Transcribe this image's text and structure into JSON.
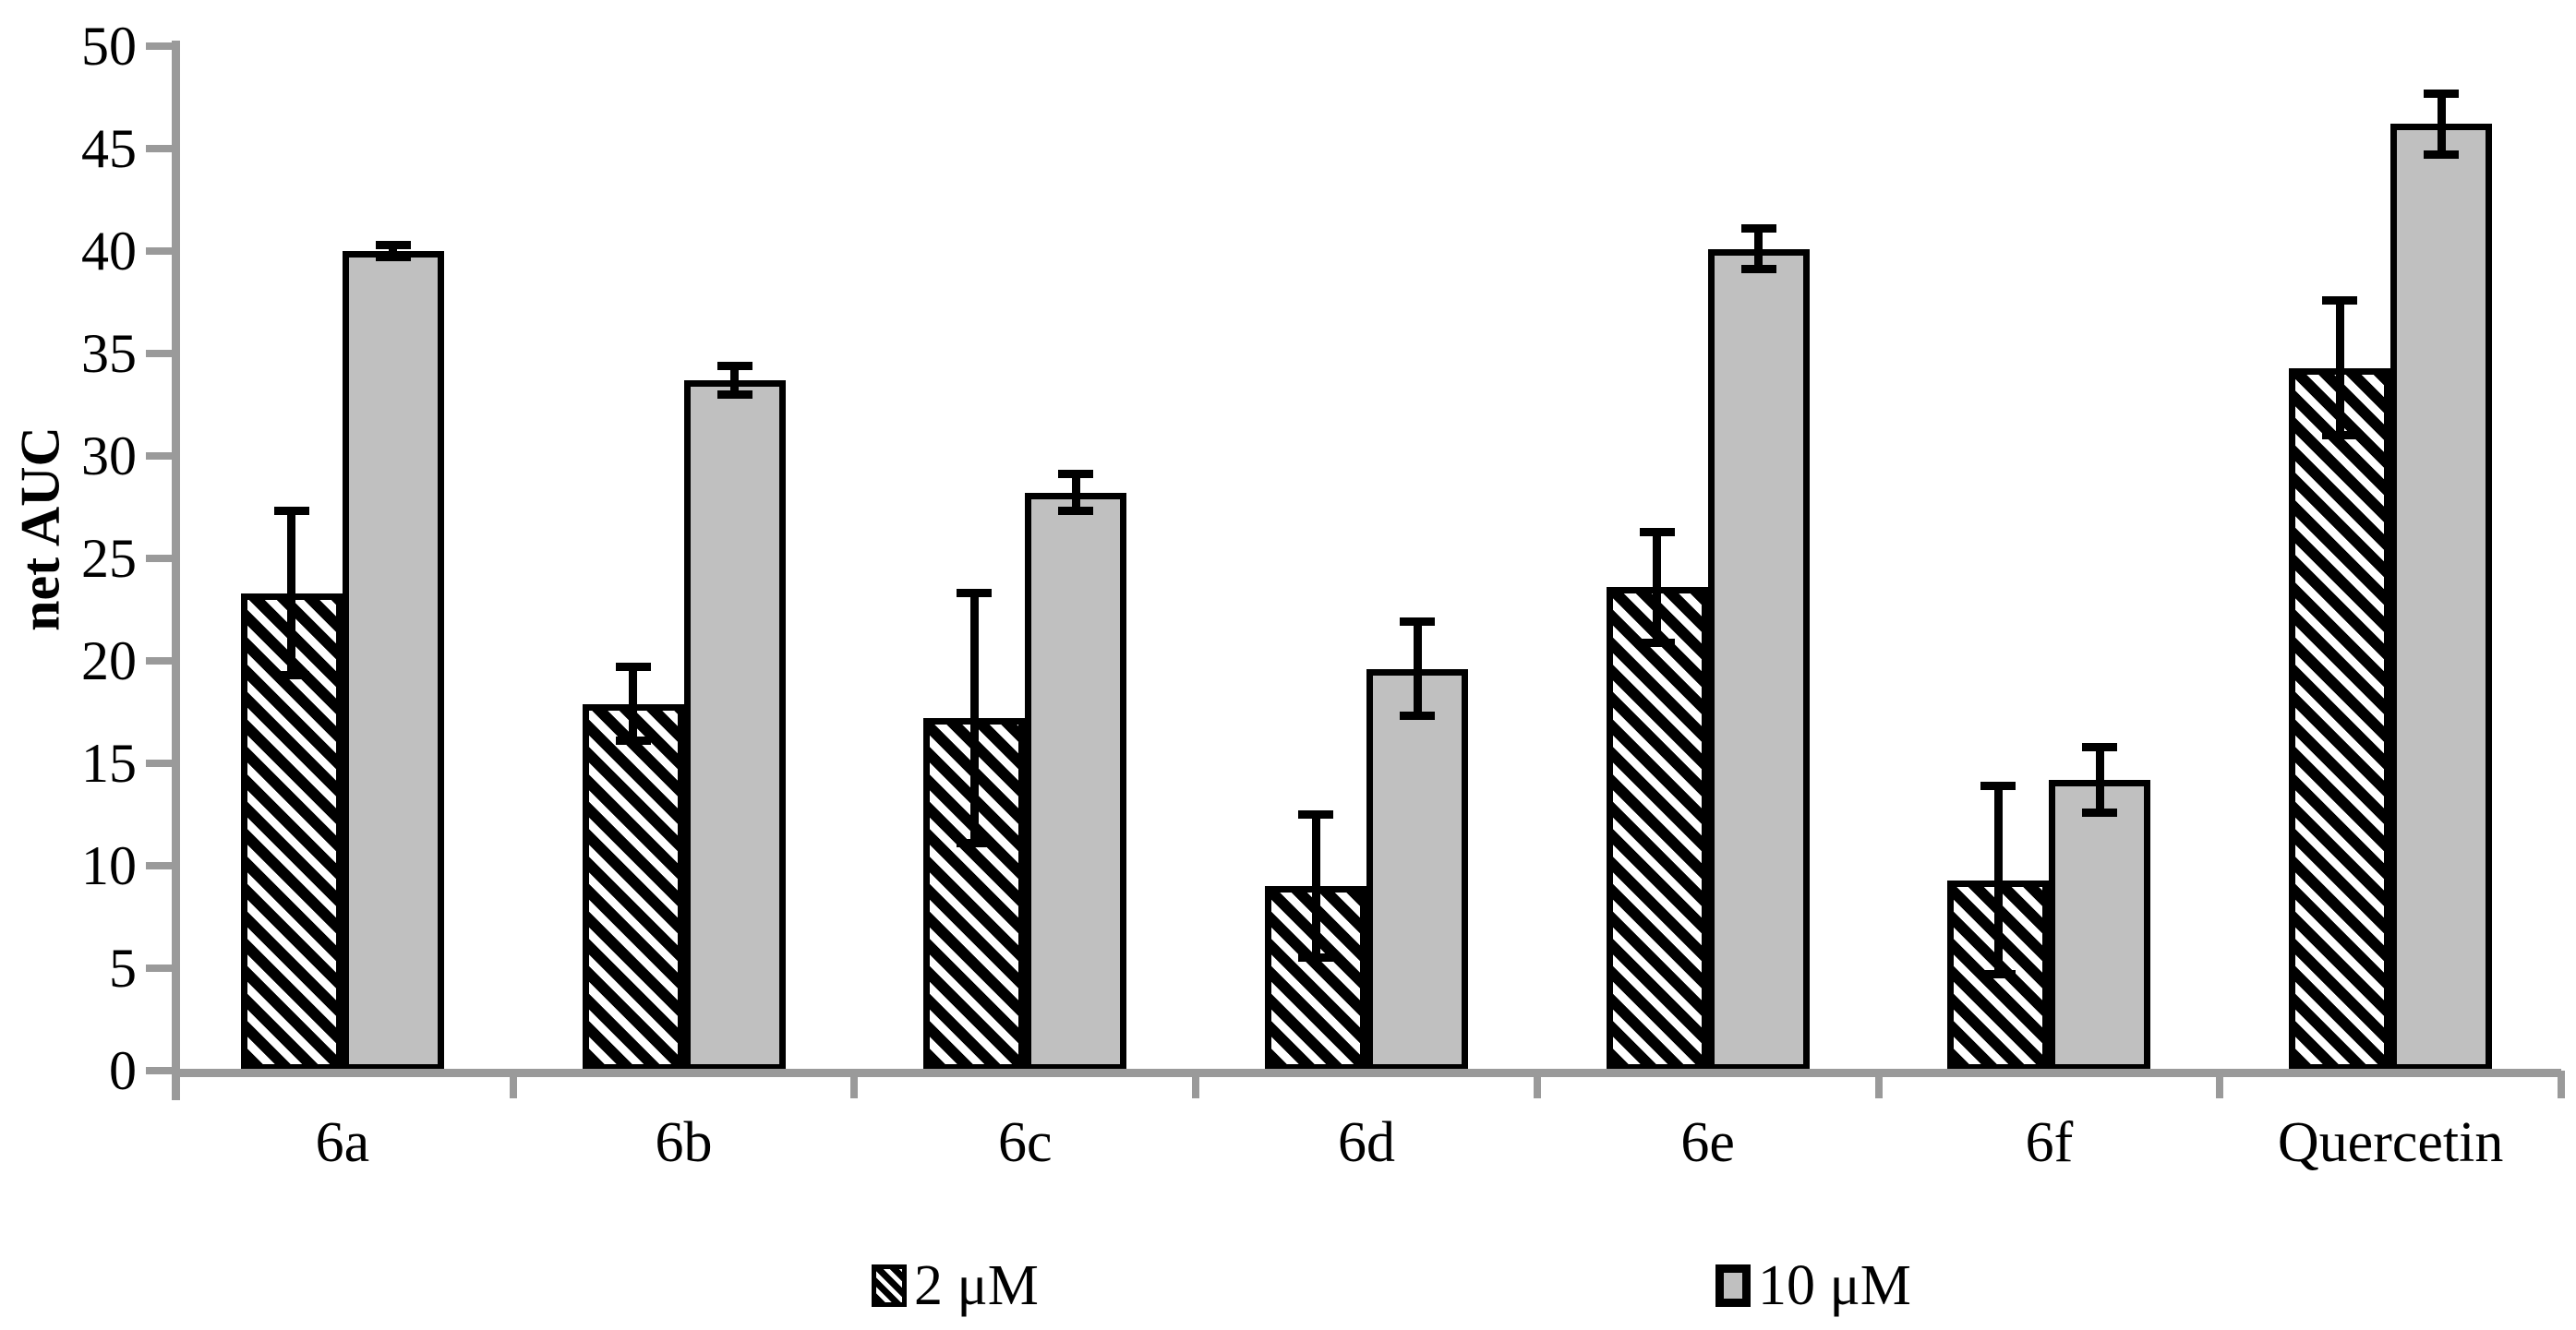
{
  "colors": {
    "bar_gray": "#c0c0c0",
    "axis_gray": "#9a9a9a",
    "black": "#000000",
    "background": "#ffffff"
  },
  "chart_data": {
    "type": "bar",
    "title": "",
    "categories": [
      "6a",
      "6b",
      "6c",
      "6d",
      "6e",
      "6f",
      "Quercetin"
    ],
    "series": [
      {
        "name": "2 μM",
        "style": "diagonal-hatch",
        "values": [
          23.3,
          17.9,
          17.2,
          9.0,
          23.6,
          9.3,
          34.3
        ],
        "errors": [
          4.0,
          1.8,
          6.1,
          3.5,
          2.7,
          4.6,
          3.3
        ]
      },
      {
        "name": "10 μM",
        "style": "gray-fill",
        "values": [
          40.0,
          33.7,
          28.2,
          19.6,
          40.1,
          14.2,
          46.2
        ],
        "errors": [
          0.3,
          0.7,
          0.9,
          2.3,
          1.0,
          1.6,
          1.5
        ]
      }
    ],
    "ylabel": "net AUC",
    "xlabel": "",
    "ylim": [
      0,
      50
    ],
    "yticks": [
      0,
      5,
      10,
      15,
      20,
      25,
      30,
      35,
      40,
      45,
      50
    ],
    "grid": false,
    "error_bars": true,
    "legend_position": "bottom"
  }
}
